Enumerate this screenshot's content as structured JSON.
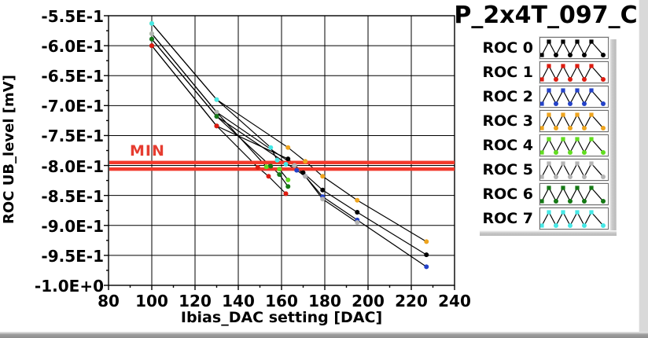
{
  "chart_data": {
    "type": "line",
    "title": "P_2x4T_097_C",
    "xlabel": "Ibias_DAC setting [DAC]",
    "ylabel": "ROC UB_level [mV]",
    "xlim": [
      80,
      240
    ],
    "ylim": [
      -1.0,
      -0.55
    ],
    "grid": true,
    "background": "#ffffff",
    "legend_position": "right",
    "x_ticks": [
      80,
      100,
      120,
      140,
      160,
      180,
      200,
      220,
      240
    ],
    "y_ticks": [
      {
        "value": -0.55,
        "label": "-5.5E-1"
      },
      {
        "value": -0.6,
        "label": "-6.0E-1"
      },
      {
        "value": -0.65,
        "label": "-6.5E-1"
      },
      {
        "value": -0.7,
        "label": "-7.0E-1"
      },
      {
        "value": -0.75,
        "label": "-7.5E-1"
      },
      {
        "value": -0.8,
        "label": "-8.0E-1"
      },
      {
        "value": -0.85,
        "label": "-8.5E-1"
      },
      {
        "value": -0.9,
        "label": "-9.0E-1"
      },
      {
        "value": -0.95,
        "label": "-9.5E-1"
      },
      {
        "value": -1.0,
        "label": "-1.0E+0"
      }
    ],
    "limit_lines": {
      "label": "MIN",
      "values": [
        -0.795,
        -0.806
      ],
      "color": "#f2392b",
      "label_color": "#e63c30"
    },
    "line_color": "#000000",
    "series": [
      {
        "name": "ROC 0",
        "color": "#000000",
        "points": [
          [
            100,
            -0.6
          ],
          [
            130,
            -0.734
          ],
          [
            163,
            -0.789
          ],
          [
            170,
            -0.812
          ],
          [
            179,
            -0.841
          ],
          [
            195,
            -0.878
          ],
          [
            227,
            -0.949
          ]
        ]
      },
      {
        "name": "ROC 1",
        "color": "#dd1c10",
        "points": [
          [
            100,
            -0.6
          ],
          [
            130,
            -0.734
          ],
          [
            149,
            -0.803
          ],
          [
            154,
            -0.818
          ],
          [
            162,
            -0.847
          ]
        ]
      },
      {
        "name": "ROC 2",
        "color": "#2442c8",
        "points": [
          [
            100,
            -0.589
          ],
          [
            130,
            -0.718
          ],
          [
            167,
            -0.808
          ],
          [
            171,
            -0.818
          ],
          [
            179,
            -0.852
          ],
          [
            195,
            -0.891
          ],
          [
            227,
            -0.969
          ]
        ]
      },
      {
        "name": "ROC 3",
        "color": "#eea41e",
        "points": [
          [
            100,
            -0.563
          ],
          [
            130,
            -0.69
          ],
          [
            163,
            -0.77
          ],
          [
            171,
            -0.793
          ],
          [
            179,
            -0.818
          ],
          [
            195,
            -0.858
          ],
          [
            227,
            -0.927
          ]
        ]
      },
      {
        "name": "ROC 4",
        "color": "#62dd20",
        "points": [
          [
            100,
            -0.58
          ],
          [
            130,
            -0.711
          ],
          [
            153,
            -0.802
          ],
          [
            159,
            -0.806
          ],
          [
            163,
            -0.824
          ]
        ]
      },
      {
        "name": "ROC 5",
        "color": "#b4b4b4",
        "points": [
          [
            100,
            -0.58
          ],
          [
            130,
            -0.711
          ],
          [
            166,
            -0.8
          ],
          [
            171,
            -0.818
          ],
          [
            179,
            -0.856
          ],
          [
            195,
            -0.895
          ]
        ]
      },
      {
        "name": "ROC 6",
        "color": "#157815",
        "points": [
          [
            100,
            -0.589
          ],
          [
            130,
            -0.718
          ],
          [
            155,
            -0.801
          ],
          [
            159,
            -0.815
          ],
          [
            163,
            -0.835
          ]
        ]
      },
      {
        "name": "ROC 7",
        "color": "#45e8e6",
        "points": [
          [
            100,
            -0.563
          ],
          [
            130,
            -0.69
          ],
          [
            155,
            -0.77
          ],
          [
            158,
            -0.791
          ],
          [
            162,
            -0.798
          ]
        ]
      }
    ]
  }
}
